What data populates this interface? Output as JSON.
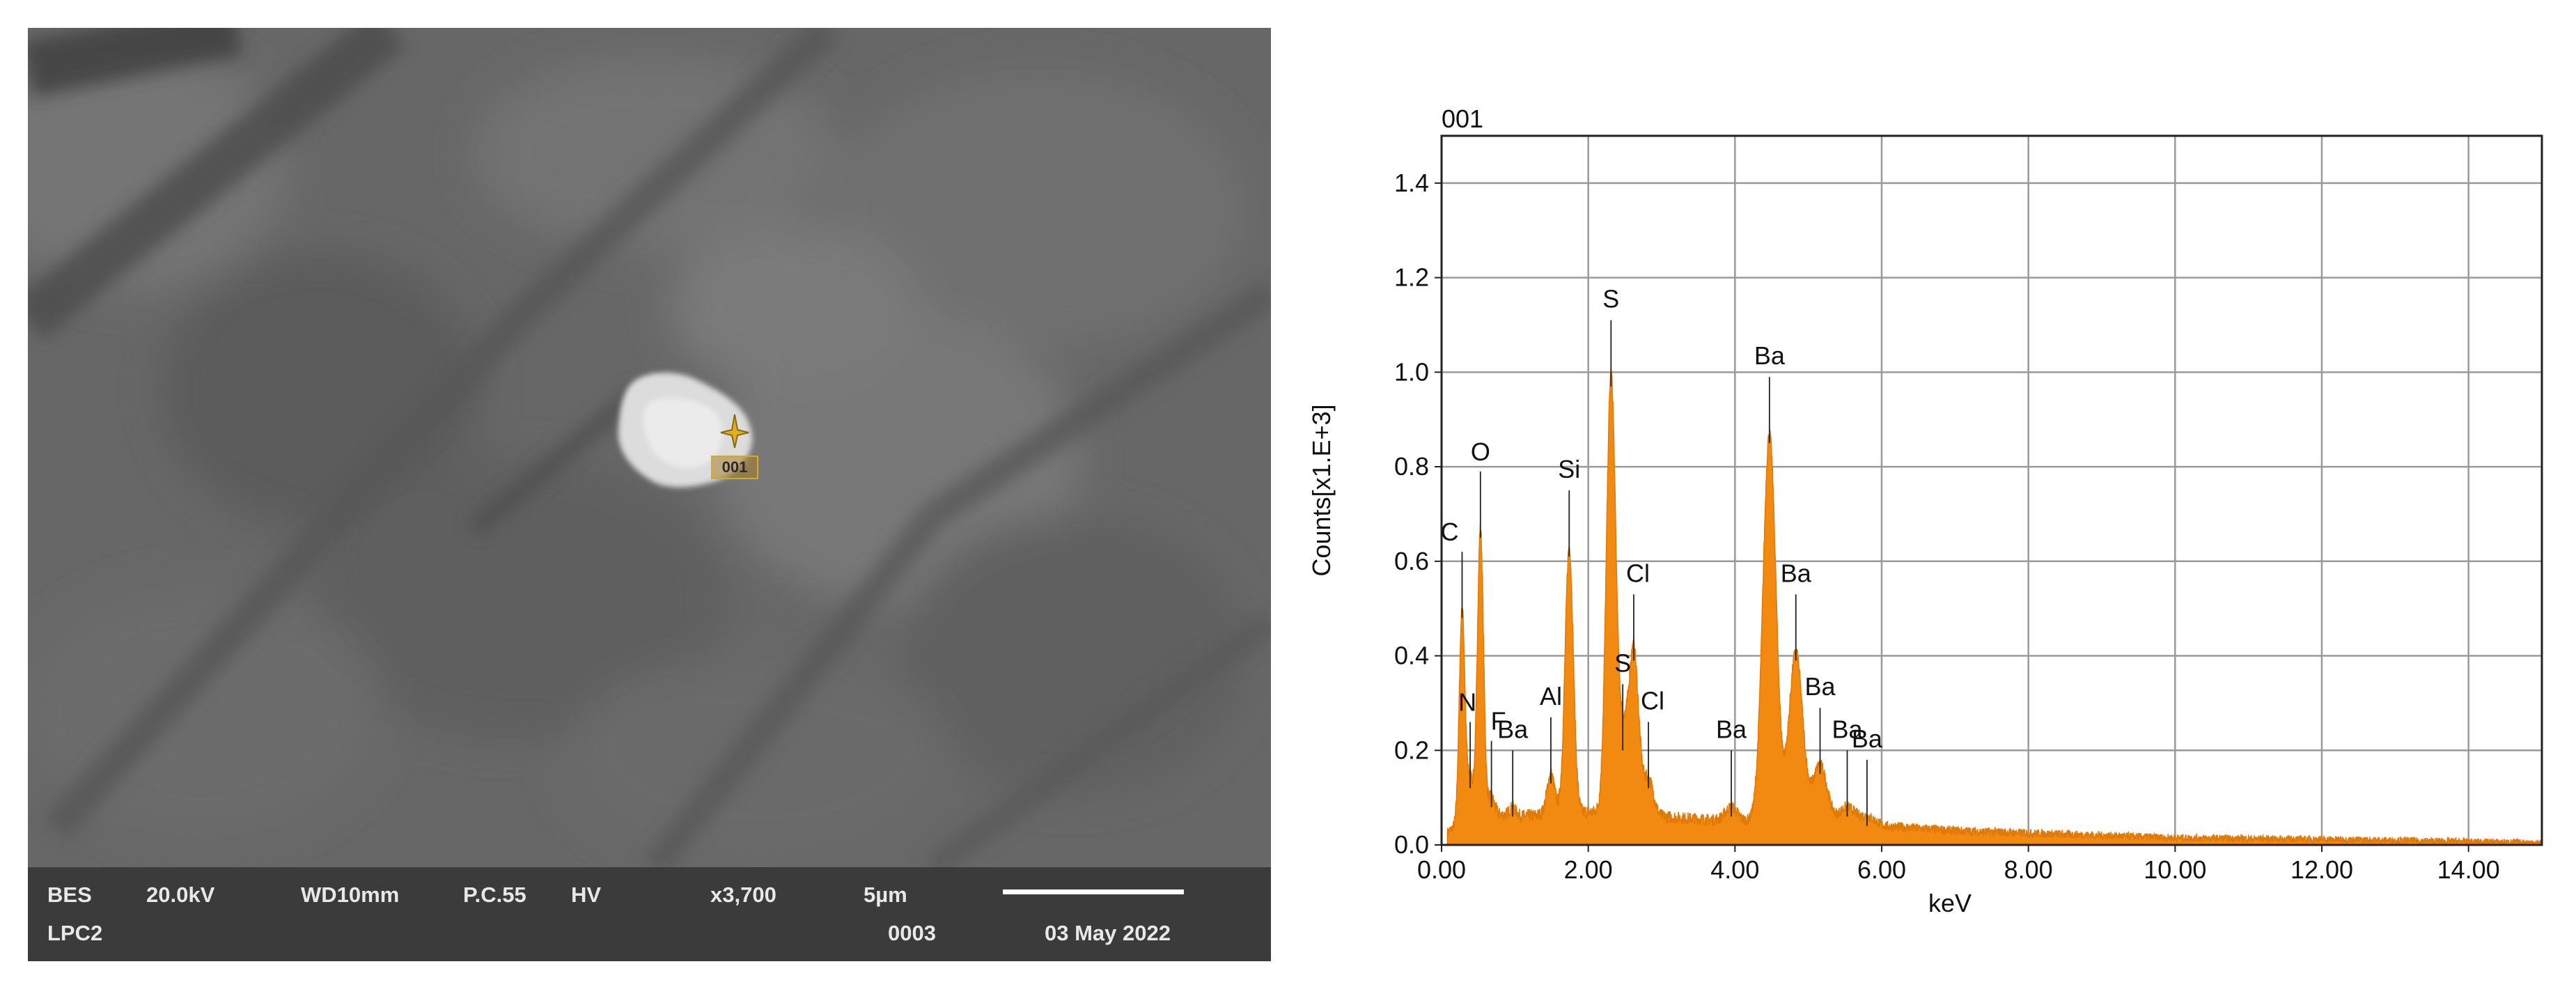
{
  "sem": {
    "marker_label": "001",
    "info": {
      "detector": "BES",
      "voltage": "20.0kV",
      "working_distance": "WD10mm",
      "probe_current": "P.C.55",
      "vacuum": "HV",
      "magnification": "x3,700",
      "scale": "5µm",
      "mode": "LPC2",
      "image_number": "0003",
      "date": "03 May 2022"
    }
  },
  "chart_data": {
    "type": "area",
    "title": "001",
    "xlabel": "keV",
    "ylabel": "Counts[x1.E+3]",
    "xlim": [
      0,
      15
    ],
    "ylim": [
      0,
      1.5
    ],
    "x_ticks": [
      "0.00",
      "2.00",
      "4.00",
      "6.00",
      "8.00",
      "10.00",
      "12.00",
      "14.00"
    ],
    "y_ticks": [
      "0.0",
      "0.2",
      "0.4",
      "0.6",
      "0.8",
      "1.0",
      "1.2",
      "1.4"
    ],
    "grid": true,
    "color": "#f28a12",
    "peaks": [
      {
        "label": "C",
        "x": 0.28,
        "height": 0.5
      },
      {
        "label": "N",
        "x": 0.39,
        "height": 0.14
      },
      {
        "label": "O",
        "x": 0.53,
        "height": 0.67
      },
      {
        "label": "F",
        "x": 0.68,
        "height": 0.1
      },
      {
        "label": "Ba",
        "x": 0.97,
        "height": 0.08
      },
      {
        "label": "Al",
        "x": 1.49,
        "height": 0.15
      },
      {
        "label": "Si",
        "x": 1.74,
        "height": 0.63
      },
      {
        "label": "S",
        "x": 2.31,
        "height": 0.99
      },
      {
        "label": "S",
        "x": 2.47,
        "height": 0.22
      },
      {
        "label": "Cl",
        "x": 2.62,
        "height": 0.41
      },
      {
        "label": "Cl",
        "x": 2.82,
        "height": 0.14
      },
      {
        "label": "Ba",
        "x": 3.95,
        "height": 0.08
      },
      {
        "label": "Ba",
        "x": 4.47,
        "height": 0.87
      },
      {
        "label": "Ba",
        "x": 4.83,
        "height": 0.41
      },
      {
        "label": "Ba",
        "x": 5.16,
        "height": 0.17
      },
      {
        "label": "Ba",
        "x": 5.53,
        "height": 0.08
      },
      {
        "label": "Ba",
        "x": 5.8,
        "height": 0.06
      }
    ],
    "background_level": [
      [
        0.0,
        0.02
      ],
      [
        0.5,
        0.07
      ],
      [
        1.0,
        0.06
      ],
      [
        2.0,
        0.07
      ],
      [
        3.0,
        0.06
      ],
      [
        4.0,
        0.05
      ],
      [
        5.0,
        0.05
      ],
      [
        6.0,
        0.04
      ],
      [
        7.0,
        0.03
      ],
      [
        8.0,
        0.025
      ],
      [
        10.0,
        0.015
      ],
      [
        12.0,
        0.012
      ],
      [
        15.0,
        0.005
      ]
    ]
  }
}
